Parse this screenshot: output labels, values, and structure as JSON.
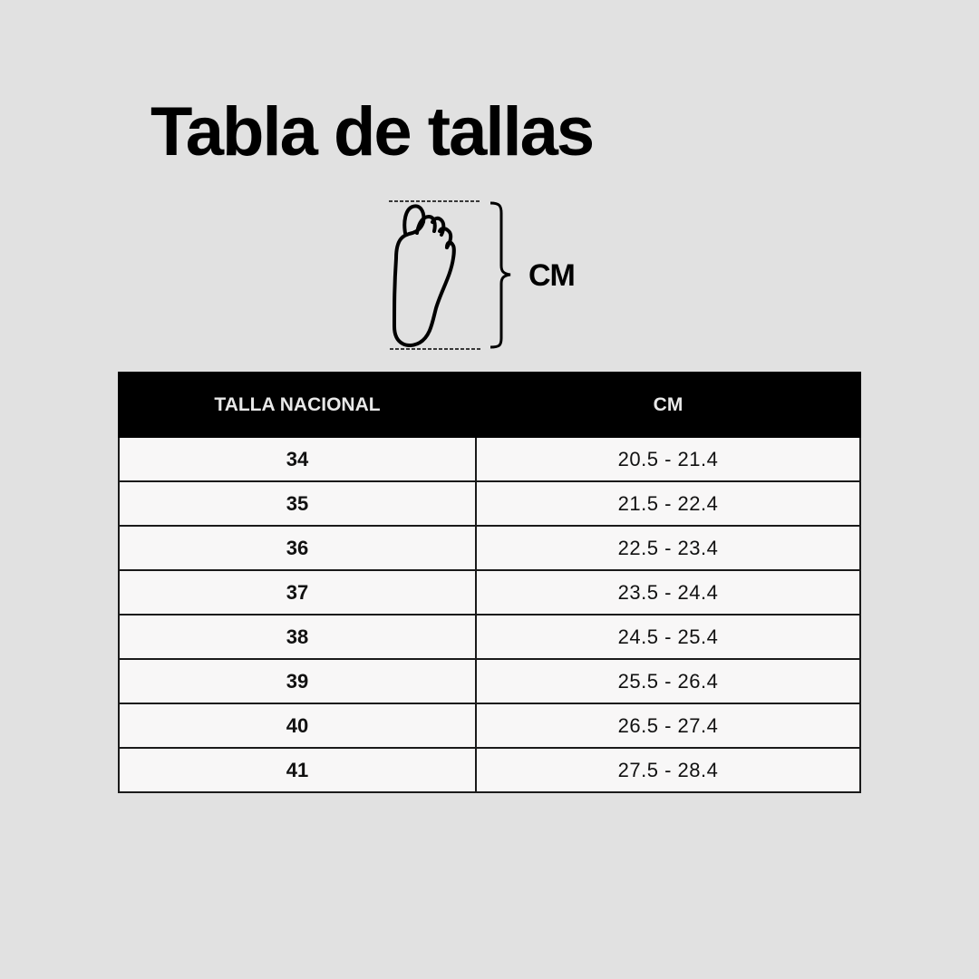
{
  "title": "Tabla de tallas",
  "diagram": {
    "icon": "foot-outline-icon",
    "measure_label": "CM"
  },
  "table": {
    "headers": [
      "TALLA NACIONAL",
      "CM"
    ],
    "rows": [
      {
        "size": "34",
        "cm": "20.5 - 21.4"
      },
      {
        "size": "35",
        "cm": "21.5 - 22.4"
      },
      {
        "size": "36",
        "cm": "22.5 - 23.4"
      },
      {
        "size": "37",
        "cm": "23.5 - 24.4"
      },
      {
        "size": "38",
        "cm": "24.5 - 25.4"
      },
      {
        "size": "39",
        "cm": "25.5 - 26.4"
      },
      {
        "size": "40",
        "cm": "26.5 - 27.4"
      },
      {
        "size": "41",
        "cm": "27.5 - 28.4"
      }
    ]
  },
  "colors": {
    "background": "#e1e1e1",
    "header_bg": "#000000",
    "cell_bg": "#f8f7f7"
  }
}
